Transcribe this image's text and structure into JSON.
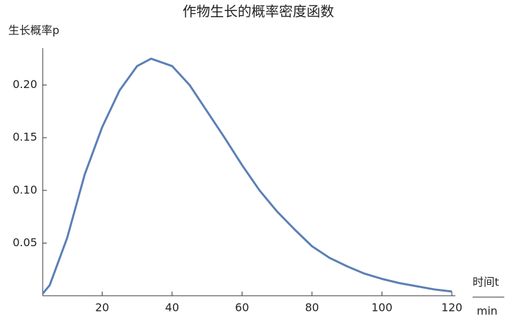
{
  "chart_data": {
    "type": "line",
    "title": "作物生长的概率密度函数",
    "y_label": "生长概率p",
    "x_label": "时间t",
    "x_unit": "min",
    "x": [
      3,
      5,
      10,
      15,
      20,
      25,
      30,
      34,
      40,
      45,
      50,
      55,
      60,
      65,
      70,
      75,
      80,
      85,
      90,
      95,
      100,
      105,
      110,
      115,
      120
    ],
    "series": [
      {
        "name": "p",
        "color": "#5b7fb5",
        "values": [
          0.002,
          0.01,
          0.055,
          0.115,
          0.16,
          0.195,
          0.218,
          0.225,
          0.218,
          0.2,
          0.175,
          0.15,
          0.124,
          0.1,
          0.08,
          0.063,
          0.047,
          0.036,
          0.028,
          0.021,
          0.016,
          0.012,
          0.009,
          0.006,
          0.004
        ]
      }
    ],
    "xlim": [
      3,
      121
    ],
    "ylim": [
      0,
      0.235
    ],
    "xticks": [
      20,
      40,
      60,
      80,
      100,
      120
    ],
    "yticks": [
      0.05,
      {
        "value": 0.1,
        "label": "0.10"
      },
      0.15,
      {
        "value": 0.2,
        "label": "0.20"
      }
    ]
  }
}
